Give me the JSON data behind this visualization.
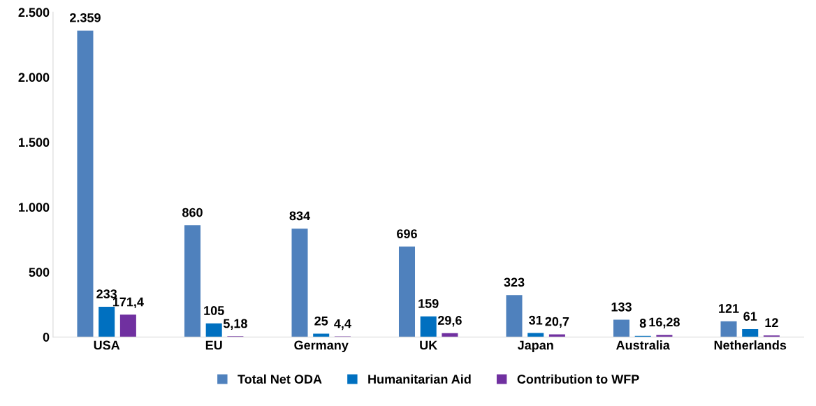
{
  "chart_data": {
    "type": "bar",
    "categories": [
      "USA",
      "EU",
      "Germany",
      "UK",
      "Japan",
      "Australia",
      "Netherlands"
    ],
    "series": [
      {
        "name": "Total Net ODA",
        "color": "#4f81bd",
        "values": [
          2359,
          860,
          834,
          696,
          323,
          133,
          121
        ],
        "value_labels": [
          "2.359",
          "860",
          "834",
          "696",
          "323",
          "133",
          "121"
        ]
      },
      {
        "name": "Humanitarian Aid",
        "color": "#0070c0",
        "values": [
          233,
          105,
          25,
          159,
          31,
          8,
          61
        ],
        "value_labels": [
          "233",
          "105",
          "25",
          "159",
          "31",
          "8",
          "61"
        ]
      },
      {
        "name": "Contribution to WFP",
        "color": "#7030a0",
        "values": [
          171.4,
          5.18,
          4.4,
          29.6,
          20.7,
          16.28,
          12
        ],
        "value_labels": [
          "171,4",
          "5,18",
          "4,4",
          "29,6",
          "20,7",
          "16,28",
          "12"
        ]
      }
    ],
    "ylim": [
      0,
      2500
    ],
    "yticks": [
      {
        "value": 0,
        "label": "0"
      },
      {
        "value": 500,
        "label": "500"
      },
      {
        "value": 1000,
        "label": "1.000"
      },
      {
        "value": 1500,
        "label": "1.500"
      },
      {
        "value": 2000,
        "label": "2.000"
      },
      {
        "value": 2500,
        "label": "2.500"
      }
    ],
    "grid": false,
    "legend": "bottom"
  }
}
